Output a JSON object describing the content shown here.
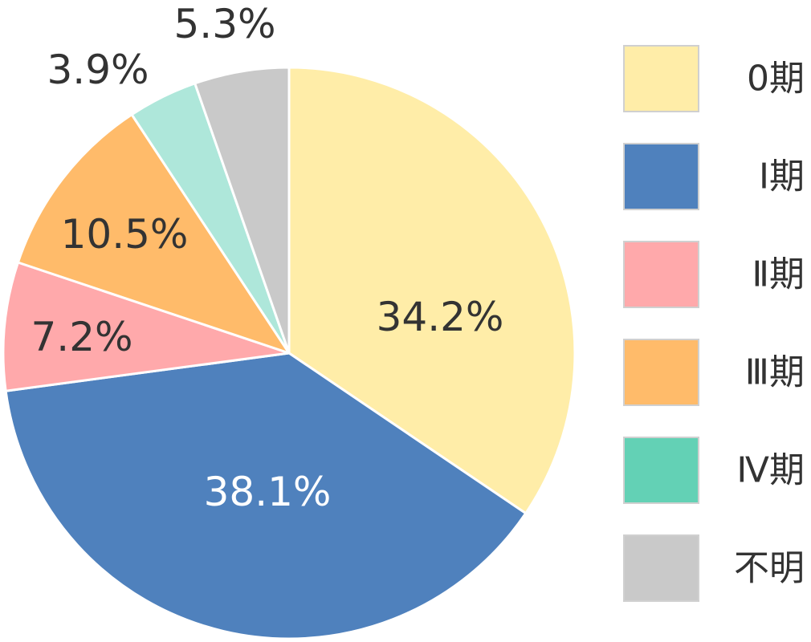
{
  "chart_data": {
    "type": "pie",
    "categories": [
      "0期",
      "Ⅰ期",
      "Ⅱ期",
      "Ⅲ期",
      "Ⅳ期",
      "不明"
    ],
    "values": [
      34.2,
      38.1,
      7.2,
      10.5,
      3.9,
      5.3
    ],
    "labels": [
      "34.2%",
      "38.1%",
      "7.2%",
      "10.5%",
      "3.9%",
      "5.3%"
    ],
    "colors": [
      "#ffeda8",
      "#4f81bd",
      "#ffa9ab",
      "#ffbb6a",
      "#aee7da",
      "#c9c9c9"
    ],
    "legend_colors": [
      "#ffeda8",
      "#4f81bd",
      "#ffa9ab",
      "#ffbb6a",
      "#63d1b5",
      "#c9c9c9"
    ],
    "label_colors": [
      "#333333",
      "#ffffff",
      "#333333",
      "#333333",
      "#333333",
      "#333333"
    ],
    "start": "12 o'clock",
    "direction": "clockwise",
    "legend_position": "right"
  }
}
